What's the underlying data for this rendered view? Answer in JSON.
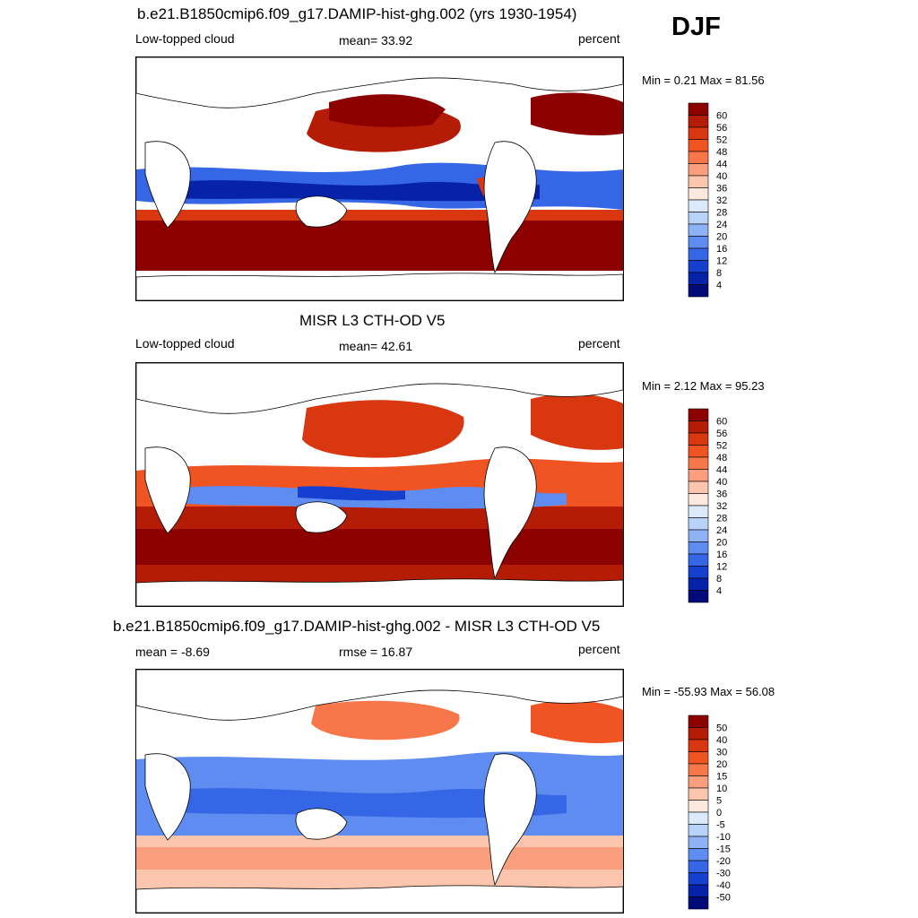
{
  "season": "DJF",
  "panels": [
    {
      "title": "b.e21.B1850cmip6.f09_g17.DAMIP-hist-ghg.002 (yrs 1930-1954)",
      "left": "Low-topped cloud",
      "center": "mean=  33.92",
      "right": "percent",
      "minmax": "Min =   0.21 Max =  81.56",
      "colorbar": {
        "labels": [
          "60",
          "56",
          "52",
          "48",
          "44",
          "40",
          "36",
          "32",
          "28",
          "24",
          "20",
          "16",
          "12",
          "8",
          "4"
        ],
        "colors": [
          "#8c0000",
          "#b51c06",
          "#d83710",
          "#f05423",
          "#f8774a",
          "#fa9f7d",
          "#fcc5ad",
          "#fde8dd",
          "#dce9fb",
          "#b8d2fa",
          "#8eb2f6",
          "#5e8cf0",
          "#3466e6",
          "#153fcf",
          "#0622a8",
          "#000a78"
        ]
      }
    },
    {
      "title": "MISR L3 CTH-OD V5",
      "left": "Low-topped cloud",
      "center": "mean=  42.61",
      "right": "percent",
      "minmax": "Min =   2.12 Max =  95.23",
      "colorbar": {
        "labels": [
          "60",
          "56",
          "52",
          "48",
          "44",
          "40",
          "36",
          "32",
          "28",
          "24",
          "20",
          "16",
          "12",
          "8",
          "4"
        ],
        "colors": [
          "#8c0000",
          "#b51c06",
          "#d83710",
          "#f05423",
          "#f8774a",
          "#fa9f7d",
          "#fcc5ad",
          "#fde8dd",
          "#dce9fb",
          "#b8d2fa",
          "#8eb2f6",
          "#5e8cf0",
          "#3466e6",
          "#153fcf",
          "#0622a8",
          "#000a78"
        ]
      }
    },
    {
      "title": "b.e21.B1850cmip6.f09_g17.DAMIP-hist-ghg.002 - MISR L3 CTH-OD V5",
      "left": "mean =  -8.69",
      "center": "rmse =  16.87",
      "right": "percent",
      "minmax": "Min = -55.93 Max =  56.08",
      "colorbar": {
        "labels": [
          "50",
          "40",
          "30",
          "20",
          "15",
          "10",
          "5",
          "0",
          "-5",
          "-10",
          "-15",
          "-20",
          "-30",
          "-40",
          "-50"
        ],
        "colors": [
          "#8c0000",
          "#b51c06",
          "#d83710",
          "#f05423",
          "#f8774a",
          "#fa9f7d",
          "#fcc5ad",
          "#fde8dd",
          "#dce9fb",
          "#b8d2fa",
          "#8eb2f6",
          "#5e8cf0",
          "#3466e6",
          "#153fcf",
          "#0622a8",
          "#000a78"
        ]
      }
    }
  ]
}
